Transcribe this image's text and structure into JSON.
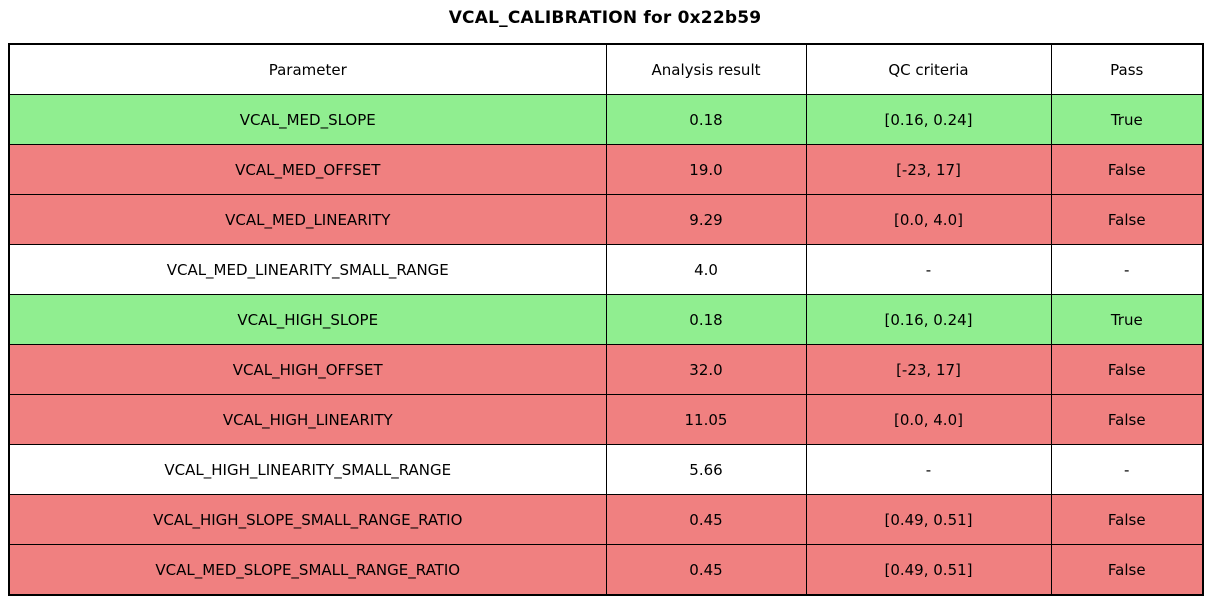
{
  "chart_data": {
    "type": "table",
    "title": "VCAL_CALIBRATION for 0x22b59",
    "columns": [
      "Parameter",
      "Analysis result",
      "QC criteria",
      "Pass"
    ],
    "rows": [
      {
        "parameter": "VCAL_MED_SLOPE",
        "result": "0.18",
        "criteria": "[0.16, 0.24]",
        "pass": "True",
        "status": "pass"
      },
      {
        "parameter": "VCAL_MED_OFFSET",
        "result": "19.0",
        "criteria": "[-23, 17]",
        "pass": "False",
        "status": "fail"
      },
      {
        "parameter": "VCAL_MED_LINEARITY",
        "result": "9.29",
        "criteria": "[0.0, 4.0]",
        "pass": "False",
        "status": "fail"
      },
      {
        "parameter": "VCAL_MED_LINEARITY_SMALL_RANGE",
        "result": "4.0",
        "criteria": "-",
        "pass": "-",
        "status": "none"
      },
      {
        "parameter": "VCAL_HIGH_SLOPE",
        "result": "0.18",
        "criteria": "[0.16, 0.24]",
        "pass": "True",
        "status": "pass"
      },
      {
        "parameter": "VCAL_HIGH_OFFSET",
        "result": "32.0",
        "criteria": "[-23, 17]",
        "pass": "False",
        "status": "fail"
      },
      {
        "parameter": "VCAL_HIGH_LINEARITY",
        "result": "11.05",
        "criteria": "[0.0, 4.0]",
        "pass": "False",
        "status": "fail"
      },
      {
        "parameter": "VCAL_HIGH_LINEARITY_SMALL_RANGE",
        "result": "5.66",
        "criteria": "-",
        "pass": "-",
        "status": "none"
      },
      {
        "parameter": "VCAL_HIGH_SLOPE_SMALL_RANGE_RATIO",
        "result": "0.45",
        "criteria": "[0.49, 0.51]",
        "pass": "False",
        "status": "fail"
      },
      {
        "parameter": "VCAL_MED_SLOPE_SMALL_RANGE_RATIO",
        "result": "0.45",
        "criteria": "[0.49, 0.51]",
        "pass": "False",
        "status": "fail"
      }
    ],
    "row_colors": {
      "pass": "#90EE90",
      "fail": "#F08080",
      "none": "#FFFFFF"
    },
    "layout": {
      "header_background": "#FFFFFF",
      "border_color": "#000000",
      "text_color": "#000000"
    }
  }
}
